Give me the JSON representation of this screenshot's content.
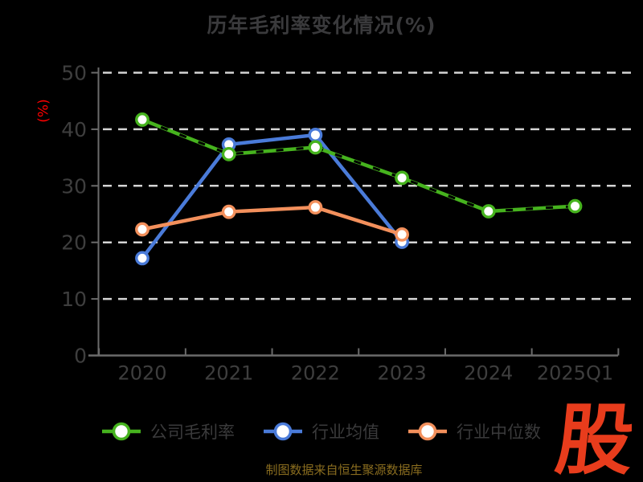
{
  "title": "历年毛利率变化情况(%)",
  "y_axis_unit": "(%)",
  "caption": "制图数据来自恒生聚源数据库",
  "logo_text": "股",
  "colors": {
    "background": "#000000",
    "title_text": "#3a3a3c",
    "axis_line": "#6b6b6b",
    "tick_label": "#3e3e3e",
    "gridline": "#d4d4d4",
    "y_unit_red": "#ff0000",
    "caption_gold": "#8a6d1f",
    "logo_red": "#e83c1c",
    "series_green": "#46b31e",
    "series_blue": "#4a7bd9",
    "series_orange": "#f3905c",
    "marker_fill": "#ffffff"
  },
  "chart_data": {
    "type": "line",
    "title": "历年毛利率变化情况(%)",
    "xlabel": "",
    "ylabel": "(%)",
    "categories": [
      "2020",
      "2021",
      "2022",
      "2023",
      "2024",
      "2025Q1"
    ],
    "series": [
      {
        "name": "公司毛利率",
        "color": "#46b31e",
        "style": "solid-with-dark-dash-overlay",
        "values": [
          41.7,
          35.6,
          36.8,
          31.4,
          25.5,
          26.4
        ]
      },
      {
        "name": "行业均值",
        "color": "#4a7bd9",
        "style": "solid",
        "values": [
          17.2,
          37.3,
          39.0,
          20.1,
          null,
          null
        ]
      },
      {
        "name": "行业中位数",
        "color": "#f3905c",
        "style": "solid",
        "values": [
          22.3,
          25.4,
          26.2,
          21.4,
          null,
          null
        ]
      }
    ],
    "ylim": [
      0,
      50
    ],
    "yticks": [
      0,
      10,
      20,
      30,
      40,
      50
    ],
    "grid": "horizontal-dashed-white",
    "legend_position": "bottom"
  }
}
